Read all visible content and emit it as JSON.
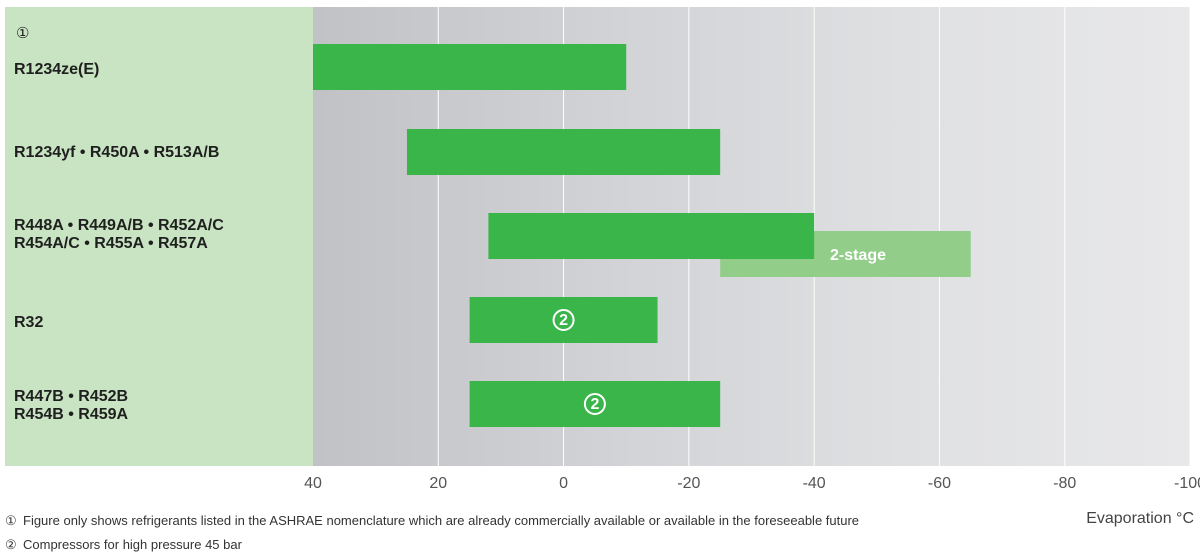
{
  "note_marker": "①",
  "chart_data": {
    "type": "bar",
    "orientation": "horizontal-range",
    "xlabel": "Evaporation °C",
    "xlim": [
      40,
      -100
    ],
    "xticks": [
      40,
      20,
      0,
      -20,
      -40,
      -60,
      -80,
      -100
    ],
    "xtick_labels": [
      "40",
      "20",
      "0",
      "-20",
      "-40",
      "-60",
      "-80",
      "-100"
    ],
    "grid": true,
    "colors": {
      "bar": "#3ab54a",
      "two_stage": "#93cd8a",
      "label_panel": "#c8e4c2"
    },
    "categories": [
      {
        "lines": [
          "R1234ze(E)"
        ]
      },
      {
        "lines": [
          "R1234yf • R450A  • R513A/B"
        ]
      },
      {
        "lines": [
          "R448A • R449A/B • R452A/C",
          "R454A/C • R455A • R457A"
        ]
      },
      {
        "lines": [
          "R32"
        ]
      },
      {
        "lines": [
          "R447B • R452B",
          "R454B • R459A"
        ]
      }
    ],
    "bars": [
      {
        "category": 0,
        "from": 40,
        "to": -10
      },
      {
        "category": 1,
        "from": 25,
        "to": -25
      },
      {
        "category": 2,
        "from": 12,
        "to": -40
      },
      {
        "category": 2,
        "from": -25,
        "to": -65,
        "label": "2-stage",
        "kind": "two_stage"
      },
      {
        "category": 3,
        "from": 15,
        "to": -15,
        "marker": "②"
      },
      {
        "category": 4,
        "from": 15,
        "to": -25,
        "marker": "②"
      }
    ]
  },
  "footnotes": [
    {
      "symbol": "①",
      "text": "Figure only shows refrigerants listed in the ASHRAE nomenclature which are already commercially available or available in the foreseeable future"
    },
    {
      "symbol": "②",
      "text": "Compressors for high pressure 45 bar"
    }
  ]
}
